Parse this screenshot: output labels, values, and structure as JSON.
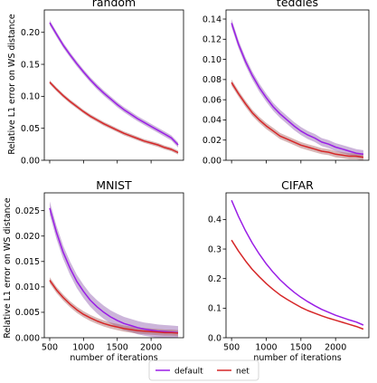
{
  "figure": {
    "ylabel": "Relative L1 error on WS distance",
    "xlabel": "number of iterations"
  },
  "legend": {
    "position": "bottom-center",
    "entries": [
      {
        "label": "default",
        "color": "#9a1ee6"
      },
      {
        "label": "net",
        "color": "#d62728"
      }
    ]
  },
  "chart_data": [
    {
      "type": "line",
      "title": "random",
      "xlabel": "",
      "ylabel": "Relative L1 error on WS distance",
      "xlim": [
        420,
        2480
      ],
      "ylim": [
        0,
        0.235
      ],
      "xticks": [
        500,
        1000,
        1500,
        2000
      ],
      "show_xticklabels": false,
      "yticks": [
        0.0,
        0.05,
        0.1,
        0.15,
        0.2
      ],
      "ytick_labels": [
        "0.00",
        "0.05",
        "0.10",
        "0.15",
        "0.20"
      ],
      "grid": false,
      "x": [
        500,
        600,
        700,
        800,
        900,
        1000,
        1100,
        1200,
        1300,
        1400,
        1500,
        1600,
        1700,
        1800,
        1900,
        2000,
        2100,
        2200,
        2300,
        2400
      ],
      "series": [
        {
          "name": "default",
          "color": "#9a1ee6",
          "band": 0.004,
          "values": [
            0.215,
            0.197,
            0.18,
            0.165,
            0.151,
            0.138,
            0.126,
            0.115,
            0.105,
            0.096,
            0.087,
            0.079,
            0.072,
            0.065,
            0.059,
            0.053,
            0.047,
            0.041,
            0.035,
            0.024
          ]
        },
        {
          "name": "net",
          "color": "#d62728",
          "band": 0.003,
          "values": [
            0.122,
            0.111,
            0.101,
            0.092,
            0.084,
            0.076,
            0.069,
            0.063,
            0.057,
            0.052,
            0.047,
            0.042,
            0.038,
            0.034,
            0.03,
            0.027,
            0.024,
            0.02,
            0.017,
            0.012
          ]
        }
      ]
    },
    {
      "type": "line",
      "title": "teddies",
      "xlabel": "",
      "ylabel": "",
      "xlim": [
        420,
        2480
      ],
      "ylim": [
        0,
        0.149
      ],
      "xticks": [
        500,
        1000,
        1500,
        2000
      ],
      "show_xticklabels": false,
      "yticks": [
        0.0,
        0.02,
        0.04,
        0.06,
        0.08,
        0.1,
        0.12,
        0.14
      ],
      "ytick_labels": [
        "0.00",
        "0.02",
        "0.04",
        "0.06",
        "0.08",
        "0.10",
        "0.12",
        "0.14"
      ],
      "grid": false,
      "x": [
        500,
        600,
        700,
        800,
        900,
        1000,
        1100,
        1200,
        1300,
        1400,
        1500,
        1600,
        1700,
        1800,
        1900,
        2000,
        2100,
        2200,
        2300,
        2400
      ],
      "series": [
        {
          "name": "default",
          "color": "#9a1ee6",
          "band": 0.004,
          "values": [
            0.136,
            0.115,
            0.098,
            0.084,
            0.072,
            0.062,
            0.053,
            0.046,
            0.04,
            0.034,
            0.029,
            0.025,
            0.022,
            0.018,
            0.016,
            0.013,
            0.011,
            0.009,
            0.007,
            0.006
          ]
        },
        {
          "name": "net",
          "color": "#d62728",
          "band": 0.003,
          "values": [
            0.077,
            0.066,
            0.056,
            0.047,
            0.04,
            0.034,
            0.029,
            0.024,
            0.021,
            0.018,
            0.015,
            0.013,
            0.011,
            0.009,
            0.008,
            0.006,
            0.005,
            0.004,
            0.004,
            0.003
          ]
        }
      ]
    },
    {
      "type": "line",
      "title": "MNIST",
      "xlabel": "number of iterations",
      "ylabel": "Relative L1 error on WS distance",
      "xlim": [
        420,
        2480
      ],
      "ylim": [
        0,
        0.0285
      ],
      "xticks": [
        500,
        1000,
        1500,
        2000
      ],
      "show_xticklabels": true,
      "yticks": [
        0.0,
        0.005,
        0.01,
        0.015,
        0.02,
        0.025
      ],
      "ytick_labels": [
        "0.000",
        "0.005",
        "0.010",
        "0.015",
        "0.020",
        "0.025"
      ],
      "grid": false,
      "x": [
        500,
        600,
        700,
        800,
        900,
        1000,
        1100,
        1200,
        1300,
        1400,
        1500,
        1600,
        1700,
        1800,
        1900,
        2000,
        2100,
        2200,
        2300,
        2400
      ],
      "series": [
        {
          "name": "default",
          "color": "#9a1ee6",
          "band": 0.0013,
          "values": [
            0.0255,
            0.0207,
            0.0168,
            0.0137,
            0.0111,
            0.0091,
            0.0074,
            0.0061,
            0.005,
            0.0041,
            0.0034,
            0.0028,
            0.0024,
            0.002,
            0.0017,
            0.0015,
            0.0013,
            0.0012,
            0.0011,
            0.001
          ]
        },
        {
          "name": "net",
          "color": "#d62728",
          "band": 0.0006,
          "values": [
            0.0113,
            0.0094,
            0.0079,
            0.0066,
            0.0055,
            0.0046,
            0.0039,
            0.0033,
            0.0028,
            0.0024,
            0.0021,
            0.0018,
            0.0016,
            0.0014,
            0.0013,
            0.0012,
            0.0011,
            0.001,
            0.001,
            0.0009
          ]
        }
      ]
    },
    {
      "type": "line",
      "title": "CIFAR",
      "xlabel": "number of iterations",
      "ylabel": "",
      "xlim": [
        420,
        2480
      ],
      "ylim": [
        0,
        0.49
      ],
      "xticks": [
        500,
        1000,
        1500,
        2000
      ],
      "show_xticklabels": true,
      "yticks": [
        0.0,
        0.1,
        0.2,
        0.3,
        0.4
      ],
      "ytick_labels": [
        "0.0",
        "0.1",
        "0.2",
        "0.3",
        "0.4"
      ],
      "grid": false,
      "x": [
        500,
        600,
        700,
        800,
        900,
        1000,
        1100,
        1200,
        1300,
        1400,
        1500,
        1600,
        1700,
        1800,
        1900,
        2000,
        2100,
        2200,
        2300,
        2400
      ],
      "series": [
        {
          "name": "default",
          "color": "#9a1ee6",
          "band": 0.0,
          "values": [
            0.465,
            0.41,
            0.362,
            0.32,
            0.283,
            0.25,
            0.221,
            0.196,
            0.174,
            0.154,
            0.137,
            0.122,
            0.108,
            0.096,
            0.086,
            0.076,
            0.068,
            0.06,
            0.053,
            0.043
          ]
        },
        {
          "name": "net",
          "color": "#d62728",
          "band": 0.0,
          "values": [
            0.33,
            0.293,
            0.26,
            0.231,
            0.206,
            0.183,
            0.163,
            0.145,
            0.13,
            0.116,
            0.103,
            0.092,
            0.083,
            0.074,
            0.066,
            0.059,
            0.052,
            0.045,
            0.038,
            0.029
          ]
        }
      ]
    }
  ]
}
